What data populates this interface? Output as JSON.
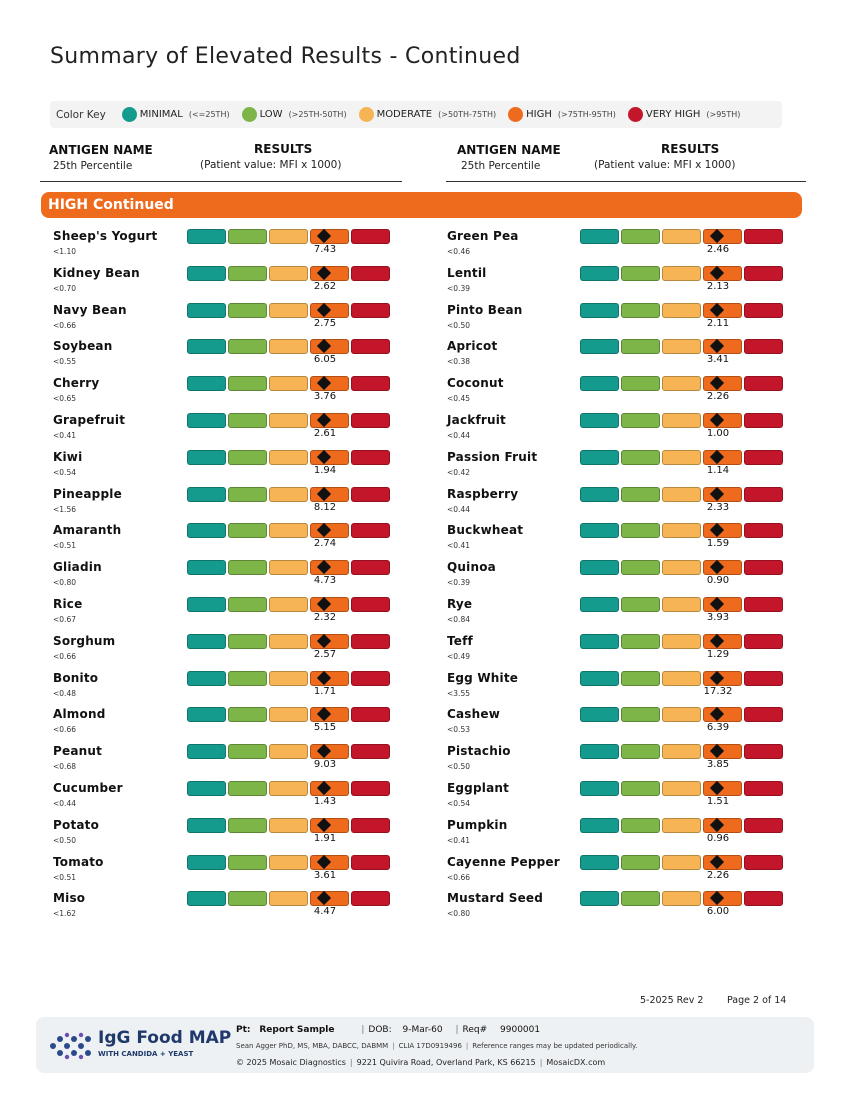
{
  "page": {
    "title": "Summary of Elevated Results - Continued"
  },
  "color_key": {
    "title": "Color Key",
    "items": [
      {
        "label": "MINIMAL",
        "range": "(<=25TH)",
        "color": "#159b8e"
      },
      {
        "label": "LOW",
        "range": "(>25TH-50TH)",
        "color": "#7db549"
      },
      {
        "label": "MODERATE",
        "range": "(>50TH-75TH)",
        "color": "#f6b454"
      },
      {
        "label": "HIGH",
        "range": "(>75TH-95TH)",
        "color": "#ee6a1d"
      },
      {
        "label": "VERY HIGH",
        "range": "(>95TH)",
        "color": "#c4162a"
      }
    ]
  },
  "columns": {
    "antigen_name": "ANTIGEN NAME",
    "percentile": "25th Percentile",
    "results": "RESULTS",
    "units": "(Patient value: MFI x 1000)"
  },
  "section": {
    "title": "HIGH Continued",
    "level": "HIGH"
  },
  "results_left": [
    {
      "name": "Sheep's Yogurt",
      "pct": "<1.10",
      "value": "7.43"
    },
    {
      "name": "Kidney Bean",
      "pct": "<0.70",
      "value": "2.62"
    },
    {
      "name": "Navy Bean",
      "pct": "<0.66",
      "value": "2.75"
    },
    {
      "name": "Soybean",
      "pct": "<0.55",
      "value": "6.05"
    },
    {
      "name": "Cherry",
      "pct": "<0.65",
      "value": "3.76"
    },
    {
      "name": "Grapefruit",
      "pct": "<0.41",
      "value": "2.61"
    },
    {
      "name": "Kiwi",
      "pct": "<0.54",
      "value": "1.94"
    },
    {
      "name": "Pineapple",
      "pct": "<1.56",
      "value": "8.12"
    },
    {
      "name": "Amaranth",
      "pct": "<0.51",
      "value": "2.74"
    },
    {
      "name": "Gliadin",
      "pct": "<0.80",
      "value": "4.73"
    },
    {
      "name": "Rice",
      "pct": "<0.67",
      "value": "2.32"
    },
    {
      "name": "Sorghum",
      "pct": "<0.66",
      "value": "2.57"
    },
    {
      "name": "Bonito",
      "pct": "<0.48",
      "value": "1.71"
    },
    {
      "name": "Almond",
      "pct": "<0.66",
      "value": "5.15"
    },
    {
      "name": "Peanut",
      "pct": "<0.68",
      "value": "9.03"
    },
    {
      "name": "Cucumber",
      "pct": "<0.44",
      "value": "1.43"
    },
    {
      "name": "Potato",
      "pct": "<0.50",
      "value": "1.91"
    },
    {
      "name": "Tomato",
      "pct": "<0.51",
      "value": "3.61"
    },
    {
      "name": "Miso",
      "pct": "<1.62",
      "value": "4.47"
    }
  ],
  "results_right": [
    {
      "name": "Green Pea",
      "pct": "<0.46",
      "value": "2.46"
    },
    {
      "name": "Lentil",
      "pct": "<0.39",
      "value": "2.13"
    },
    {
      "name": "Pinto Bean",
      "pct": "<0.50",
      "value": "2.11"
    },
    {
      "name": "Apricot",
      "pct": "<0.38",
      "value": "3.41"
    },
    {
      "name": "Coconut",
      "pct": "<0.45",
      "value": "2.26"
    },
    {
      "name": "Jackfruit",
      "pct": "<0.44",
      "value": "1.00"
    },
    {
      "name": "Passion Fruit",
      "pct": "<0.42",
      "value": "1.14"
    },
    {
      "name": "Raspberry",
      "pct": "<0.44",
      "value": "2.33"
    },
    {
      "name": "Buckwheat",
      "pct": "<0.41",
      "value": "1.59"
    },
    {
      "name": "Quinoa",
      "pct": "<0.39",
      "value": "0.90"
    },
    {
      "name": "Rye",
      "pct": "<0.84",
      "value": "3.93"
    },
    {
      "name": "Teff",
      "pct": "<0.49",
      "value": "1.29"
    },
    {
      "name": "Egg White",
      "pct": "<3.55",
      "value": "17.32"
    },
    {
      "name": "Cashew",
      "pct": "<0.53",
      "value": "6.39"
    },
    {
      "name": "Pistachio",
      "pct": "<0.50",
      "value": "3.85"
    },
    {
      "name": "Eggplant",
      "pct": "<0.54",
      "value": "1.51"
    },
    {
      "name": "Pumpkin",
      "pct": "<0.41",
      "value": "0.96"
    },
    {
      "name": "Cayenne Pepper",
      "pct": "<0.66",
      "value": "2.26"
    },
    {
      "name": "Mustard Seed",
      "pct": "<0.80",
      "value": "6.00"
    }
  ],
  "footer": {
    "revision": "5-2025 Rev 2",
    "page_number": "Page 2 of 14",
    "brand": "IgG Food MAP",
    "brand_sub": "WITH CANDIDA + YEAST",
    "pt_label": "Pt:",
    "pt_value": "Report Sample",
    "dob_label": "DOB:",
    "dob_value": "9-Mar-60",
    "req_label": "Req#",
    "req_value": "9900001",
    "credentials": "Sean Agger PhD, MS, MBA, DABCC, DABMM",
    "clia": "CLIA 17D0919496",
    "note": "Reference ranges may be updated periodically.",
    "copyright": "© 2025 Mosaic Diagnostics",
    "address": "9221 Quivira Road, Overland Park, KS 66215",
    "website": "MosaicDX.com"
  }
}
